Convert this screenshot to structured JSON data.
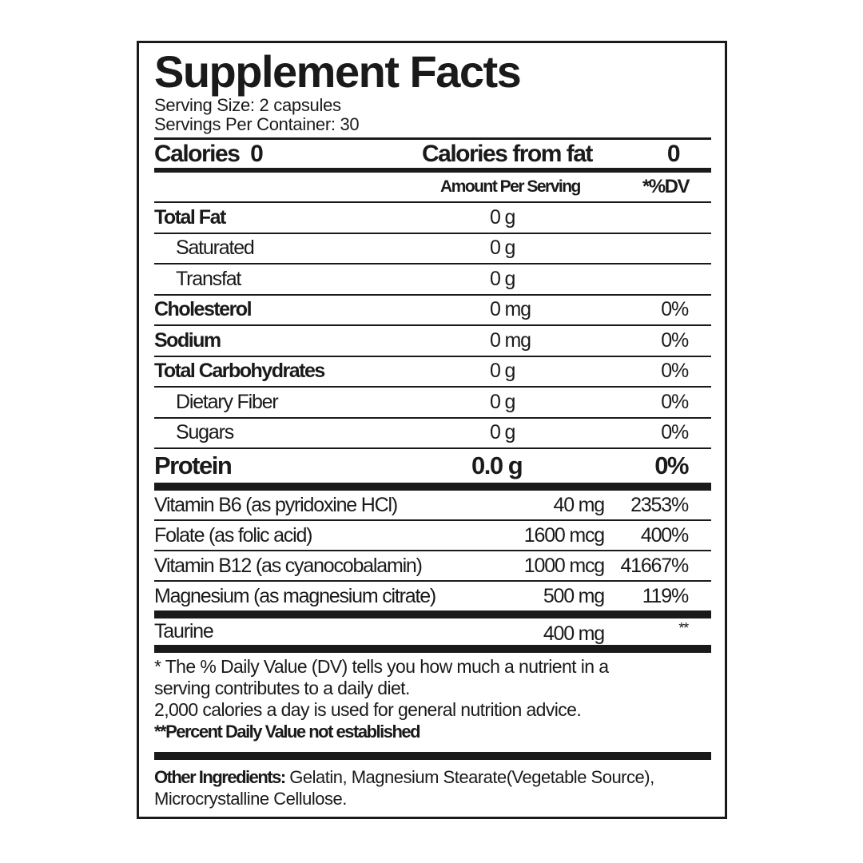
{
  "title": "Supplement Facts",
  "serving_size": "Serving Size: 2 capsules",
  "servings_per_container": "Servings Per Container: 30",
  "calories": {
    "label": "Calories",
    "value": "0",
    "from_fat_label": "Calories from fat",
    "from_fat_value": "0"
  },
  "header": {
    "amount": "Amount Per Serving",
    "dv": "*%DV"
  },
  "nutrients": [
    {
      "name": "Total Fat",
      "amount": "0 g",
      "dv": ""
    },
    {
      "name": "Saturated",
      "amount": "0 g",
      "dv": ""
    },
    {
      "name": "Transfat",
      "amount": "0 g",
      "dv": ""
    },
    {
      "name": "Cholesterol",
      "amount": "0 mg",
      "dv": "0%"
    },
    {
      "name": "Sodium",
      "amount": "0 mg",
      "dv": "0%"
    },
    {
      "name": "Total Carbohydrates",
      "amount": "0 g",
      "dv": "0%"
    },
    {
      "name": "Dietary Fiber",
      "amount": "0 g",
      "dv": "0%"
    },
    {
      "name": "Sugars",
      "amount": "0 g",
      "dv": "0%"
    }
  ],
  "protein": {
    "name": "Protein",
    "amount": "0.0 g",
    "dv": "0%"
  },
  "vitamins": [
    {
      "name": "Vitamin B6 (as pyridoxine HCl)",
      "amount": "40 mg",
      "dv": "2353%"
    },
    {
      "name": "Folate (as folic acid)",
      "amount": "1600 mcg",
      "dv": "400%"
    },
    {
      "name": "Vitamin B12 (as cyanocobalamin)",
      "amount": "1000 mcg",
      "dv": "41667%"
    },
    {
      "name": "Magnesium (as magnesium citrate)",
      "amount": "500 mg",
      "dv": "119%"
    }
  ],
  "taurine": {
    "name": "Taurine",
    "amount": "400 mg",
    "dv": "**"
  },
  "footnotes": {
    "line1": "* The % Daily Value (DV) tells you how much a nutrient in a",
    "line2": "serving contributes to a daily diet.",
    "line3": "2,000 calories a day is used for general nutrition advice.",
    "line4": "**Percent Daily Value not established"
  },
  "ingredients": {
    "label": "Other Ingredients:",
    "text": " Gelatin, Magnesium Stearate(Vegetable Source), Microcrystalline Cellulose."
  }
}
